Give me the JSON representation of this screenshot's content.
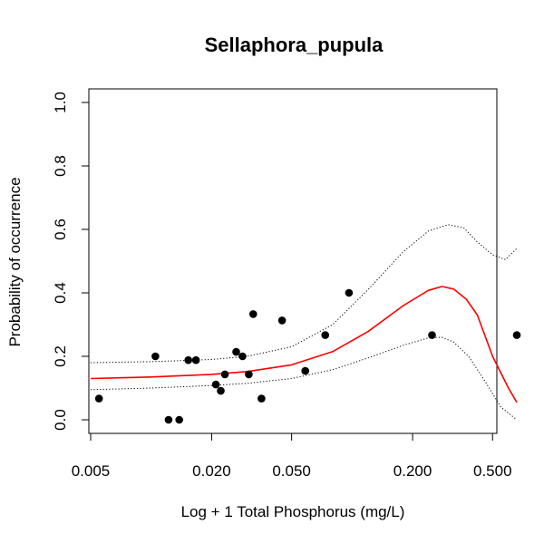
{
  "chart_data": {
    "type": "scatter",
    "title": "Sellaphora_pupula",
    "xlabel": "Log + 1 Total Phosphorus (mg/L)",
    "ylabel": "Probability of occurrence",
    "x_scale": "log",
    "xlim": [
      0.005,
      0.7
    ],
    "ylim": [
      0,
      1
    ],
    "x_ticks": [
      0.005,
      0.02,
      0.05,
      0.2,
      0.5
    ],
    "x_tick_labels": [
      "0.005",
      "0.020",
      "0.050",
      "0.200",
      "0.500"
    ],
    "y_ticks": [
      0.0,
      0.2,
      0.4,
      0.6,
      0.8,
      1.0
    ],
    "y_tick_labels": [
      "0.0",
      "0.2",
      "0.4",
      "0.6",
      "0.8",
      "1.0"
    ],
    "grid": false,
    "colors": {
      "points": "#000000",
      "fit": "#ff0000",
      "ci": "#000000"
    },
    "series": [
      {
        "kind": "points",
        "x": [
          0.0055,
          0.0105,
          0.0122,
          0.0138,
          0.0153,
          0.0167,
          0.021,
          0.0222,
          0.0233,
          0.0265,
          0.0285,
          0.0306,
          0.0322,
          0.0354,
          0.0448,
          0.0585,
          0.0735,
          0.0965,
          0.25,
          0.66
        ],
        "y": [
          0.067,
          0.2,
          0.0,
          0.0,
          0.188,
          0.188,
          0.111,
          0.091,
          0.143,
          0.214,
          0.2,
          0.143,
          0.333,
          0.067,
          0.313,
          0.154,
          0.267,
          0.4,
          0.267,
          0.267
        ]
      },
      {
        "kind": "fit",
        "x": [
          0.005,
          0.01,
          0.02,
          0.03,
          0.05,
          0.08,
          0.12,
          0.18,
          0.24,
          0.28,
          0.32,
          0.37,
          0.42,
          0.5,
          0.6,
          0.66
        ],
        "y": [
          0.13,
          0.135,
          0.143,
          0.152,
          0.173,
          0.215,
          0.278,
          0.36,
          0.408,
          0.42,
          0.412,
          0.38,
          0.33,
          0.2,
          0.1,
          0.055
        ]
      },
      {
        "kind": "ci_upper",
        "x": [
          0.005,
          0.01,
          0.02,
          0.03,
          0.05,
          0.08,
          0.12,
          0.18,
          0.24,
          0.3,
          0.36,
          0.42,
          0.5,
          0.58,
          0.66
        ],
        "y": [
          0.18,
          0.183,
          0.19,
          0.2,
          0.23,
          0.3,
          0.41,
          0.53,
          0.595,
          0.615,
          0.605,
          0.56,
          0.52,
          0.505,
          0.54
        ]
      },
      {
        "kind": "ci_lower",
        "x": [
          0.005,
          0.01,
          0.02,
          0.03,
          0.05,
          0.08,
          0.12,
          0.18,
          0.24,
          0.28,
          0.32,
          0.38,
          0.45,
          0.55,
          0.66
        ],
        "y": [
          0.095,
          0.1,
          0.108,
          0.115,
          0.13,
          0.158,
          0.195,
          0.235,
          0.258,
          0.26,
          0.245,
          0.2,
          0.13,
          0.04,
          0.0
        ]
      }
    ]
  }
}
